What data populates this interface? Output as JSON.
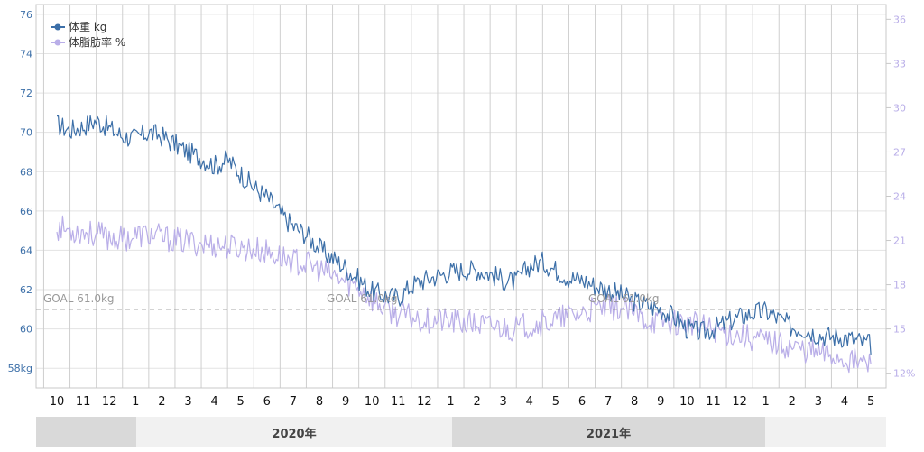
{
  "chart_data": {
    "type": "line",
    "legend": {
      "placement": "top-left",
      "entries": [
        {
          "label": "体重 kg",
          "color": "#3c6fa8"
        },
        {
          "label": "体脂肪率 %",
          "color": "#b9aee8"
        }
      ]
    },
    "x_ticks": [
      "10",
      "11",
      "12",
      "1",
      "2",
      "3",
      "4",
      "5",
      "6",
      "7",
      "8",
      "9",
      "10",
      "11",
      "12",
      "1",
      "2",
      "3",
      "4",
      "5",
      "6",
      "7",
      "8",
      "9",
      "10",
      "11",
      "12",
      "1",
      "2",
      "3",
      "4",
      "5"
    ],
    "year_labels": [
      "2020年",
      "2021年"
    ],
    "y_left": {
      "range": [
        57,
        76.5
      ],
      "ticks": [
        "76",
        "74",
        "72",
        "70",
        "68",
        "66",
        "64",
        "62",
        "60",
        "58kg"
      ],
      "tick_values": [
        76,
        74,
        72,
        70,
        68,
        66,
        64,
        62,
        60,
        58
      ],
      "color": "#3c6fa8"
    },
    "y_right": {
      "range": [
        11,
        37
      ],
      "ticks": [
        "36",
        "33",
        "30",
        "27",
        "24",
        "21",
        "18",
        "15",
        "12%"
      ],
      "tick_values": [
        36,
        33,
        30,
        27,
        24,
        21,
        18,
        15,
        12
      ],
      "color": "#b9aee8"
    },
    "grid": true,
    "goal": {
      "value": 61.0,
      "labels": [
        "GOAL 61.0kg",
        "GOAL 61.0kg",
        "GOAL 61.0kg"
      ]
    },
    "series": [
      {
        "name": "体重 kg",
        "axis": "left",
        "color": "#3c6fa8",
        "months": [
          0,
          0.5,
          1,
          1.5,
          2,
          2.5,
          3,
          3.5,
          4,
          4.5,
          5,
          5.5,
          6,
          6.5,
          7,
          7.5,
          8,
          8.5,
          9,
          9.5,
          10,
          10.5,
          11,
          11.5,
          12,
          12.5,
          13,
          13.5,
          14,
          14.5,
          15,
          15.5,
          16,
          16.5,
          17,
          17.5,
          18,
          18.5,
          19,
          19.5,
          20,
          20.5,
          21,
          21.5,
          22,
          22.5,
          23,
          23.5,
          24,
          24.5,
          25,
          25.5,
          26,
          26.5,
          27,
          27.5,
          28,
          28.5,
          29,
          29.5,
          30,
          30.5,
          31
        ],
        "values": [
          70.4,
          70.1,
          70.3,
          70.6,
          70.2,
          69.8,
          69.7,
          70.0,
          69.8,
          69.4,
          69.0,
          68.7,
          68.3,
          68.6,
          67.9,
          67.2,
          66.7,
          65.9,
          65.2,
          64.8,
          64.1,
          63.6,
          63.1,
          62.5,
          61.9,
          61.7,
          61.6,
          62.2,
          62.5,
          62.7,
          62.9,
          63.0,
          63.0,
          62.8,
          62.5,
          62.4,
          63.2,
          63.4,
          63.0,
          62.6,
          62.5,
          62.2,
          62.0,
          61.7,
          61.4,
          61.2,
          61.0,
          60.6,
          60.0,
          59.8,
          60.0,
          60.3,
          60.6,
          60.8,
          60.9,
          60.5,
          60.1,
          60.0,
          59.7,
          59.6,
          59.6,
          59.4,
          59.2
        ]
      },
      {
        "name": "体脂肪率 %",
        "axis": "right",
        "color": "#b9aee8",
        "months": [
          0,
          0.5,
          1,
          1.5,
          2,
          2.5,
          3,
          3.5,
          4,
          4.5,
          5,
          5.5,
          6,
          6.5,
          7,
          7.5,
          8,
          8.5,
          9,
          9.5,
          10,
          10.5,
          11,
          11.5,
          12,
          12.5,
          13,
          13.5,
          14,
          14.5,
          15,
          15.5,
          16,
          16.5,
          17,
          17.5,
          18,
          18.5,
          19,
          19.5,
          20,
          20.5,
          21,
          21.5,
          22,
          22.5,
          23,
          23.5,
          24,
          24.5,
          25,
          25.5,
          26,
          26.5,
          27,
          27.5,
          28,
          28.5,
          29,
          29.5,
          30,
          30.5,
          31
        ],
        "values": [
          21.9,
          21.7,
          21.6,
          21.4,
          21.2,
          21.1,
          21.3,
          21.4,
          21.2,
          21.0,
          20.9,
          20.8,
          20.7,
          20.6,
          20.5,
          20.4,
          20.2,
          19.9,
          19.6,
          19.4,
          19.0,
          18.6,
          18.2,
          17.8,
          17.0,
          16.4,
          16.0,
          15.8,
          15.6,
          15.6,
          15.5,
          15.4,
          15.3,
          15.2,
          15.1,
          15.0,
          15.3,
          15.4,
          15.6,
          15.9,
          16.1,
          16.3,
          16.5,
          16.4,
          16.0,
          15.6,
          15.5,
          15.5,
          15.4,
          15.2,
          15.0,
          14.8,
          14.6,
          14.4,
          14.2,
          14.0,
          13.8,
          13.6,
          13.4,
          13.2,
          13.0,
          12.8,
          12.6
        ]
      }
    ]
  }
}
